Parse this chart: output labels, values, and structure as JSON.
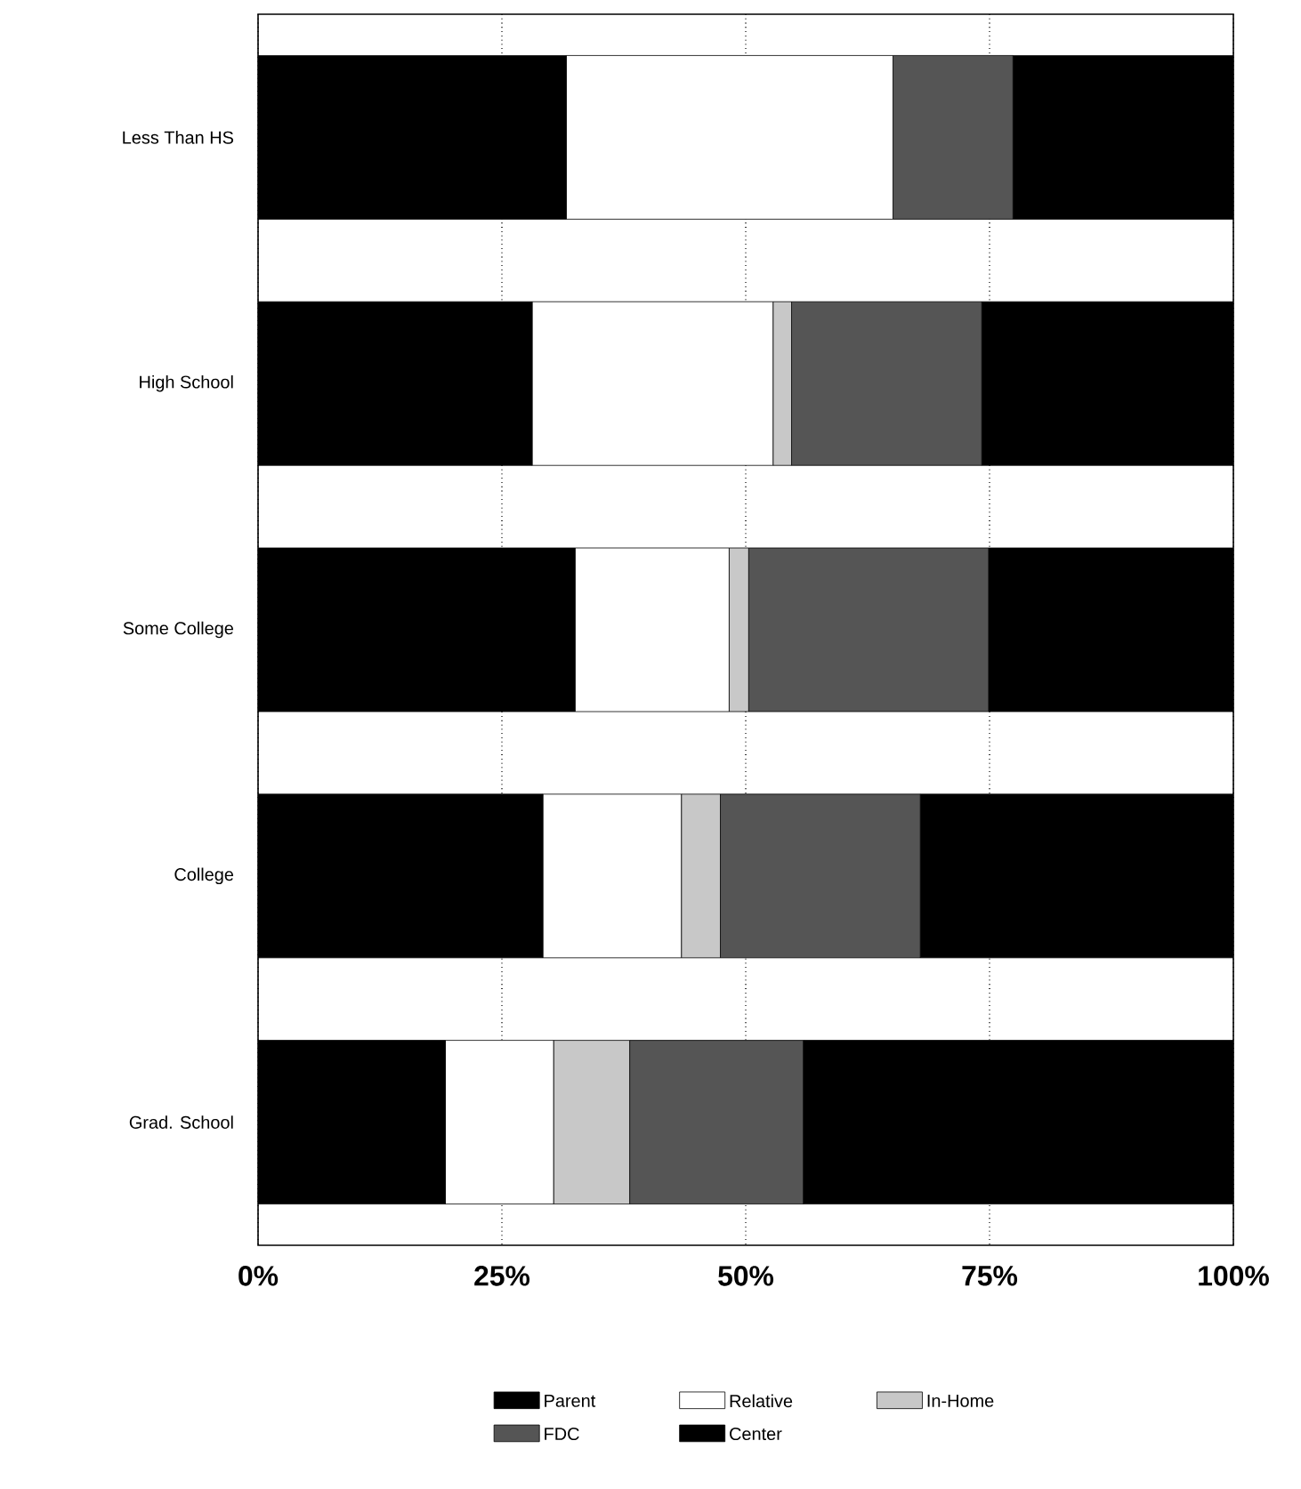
{
  "chart_data": {
    "type": "bar",
    "orientation": "horizontal",
    "stacked": true,
    "categories": [
      "Less Than HS",
      "High School",
      "Some College",
      "College",
      "Grad. School"
    ],
    "series": [
      {
        "name": "Parent",
        "color": "#000000",
        "values": [
          31.6,
          28.1,
          32.5,
          29.2,
          19.2
        ]
      },
      {
        "name": "Relative",
        "color": "#ffffff",
        "values": [
          33.5,
          24.7,
          15.8,
          14.2,
          11.1
        ]
      },
      {
        "name": "In-Home",
        "color": "#c8c8c8",
        "values": [
          0,
          1.9,
          2.0,
          4.0,
          7.8
        ]
      },
      {
        "name": "FDC",
        "color": "#555555",
        "values": [
          12.3,
          19.5,
          24.6,
          20.5,
          17.8
        ]
      },
      {
        "name": "Center",
        "color": "#000000",
        "values": [
          22.6,
          25.8,
          25.1,
          32.1,
          44.1
        ]
      }
    ],
    "xlim": [
      0,
      100
    ],
    "xticks": [
      {
        "value": 0,
        "label": "0%"
      },
      {
        "value": 25,
        "label": "25%"
      },
      {
        "value": 50,
        "label": "50%"
      },
      {
        "value": 75,
        "label": "75%"
      },
      {
        "value": 100,
        "label": "100%"
      }
    ],
    "grid": "x",
    "legend": "bottom"
  }
}
